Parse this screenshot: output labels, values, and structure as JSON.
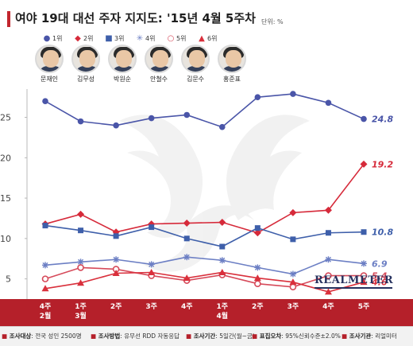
{
  "title": "여야 19대 대선 주자 지지도: '15년 4월 5주차",
  "unit_label": "단위: %",
  "legend": [
    {
      "symbol": "●",
      "label": "1위",
      "color": "#4a55a8"
    },
    {
      "symbol": "◆",
      "label": "2위",
      "color": "#d62a3a"
    },
    {
      "symbol": "■",
      "label": "3위",
      "color": "#3e5faa"
    },
    {
      "symbol": "✳",
      "label": "4위",
      "color": "#6c7fc4"
    },
    {
      "symbol": "○",
      "label": "5위",
      "color": "#d64a5a"
    },
    {
      "symbol": "▲",
      "label": "6위",
      "color": "#d9303c"
    }
  ],
  "candidates": [
    "문재인",
    "김무성",
    "박원순",
    "안철수",
    "김문수",
    "홍준표"
  ],
  "chart_data": {
    "type": "line",
    "categories": [
      "4주\n2월",
      "1주\n3월",
      "2주",
      "3주",
      "4주",
      "1주\n4월",
      "2주",
      "3주",
      "4주",
      "5주"
    ],
    "ylim": [
      2.5,
      28.5
    ],
    "yticks": [
      5,
      10,
      15,
      20,
      25
    ],
    "grid": false,
    "legend_position": "top",
    "series": [
      {
        "name": "1위",
        "color": "#4a55a8",
        "marker": "circle-filled",
        "values": [
          27.0,
          24.5,
          24.0,
          24.9,
          25.3,
          23.8,
          27.5,
          27.9,
          26.8,
          24.8
        ],
        "end_label": "24.8"
      },
      {
        "name": "2위",
        "color": "#d62a3a",
        "marker": "diamond",
        "values": [
          11.8,
          13.0,
          10.8,
          11.8,
          11.9,
          12.0,
          10.7,
          13.2,
          13.5,
          19.2
        ],
        "end_label": "19.2"
      },
      {
        "name": "3위",
        "color": "#3e5faa",
        "marker": "square",
        "values": [
          11.6,
          11.0,
          10.3,
          11.4,
          10.0,
          9.0,
          11.3,
          9.9,
          10.7,
          10.8
        ],
        "end_label": "10.8"
      },
      {
        "name": "4위",
        "color": "#6c7fc4",
        "marker": "asterisk",
        "values": [
          6.7,
          7.1,
          7.4,
          6.8,
          7.7,
          7.3,
          6.4,
          5.6,
          7.4,
          6.9
        ],
        "end_label": "6.9"
      },
      {
        "name": "5위",
        "color": "#d64a5a",
        "marker": "circle-open",
        "values": [
          5.0,
          6.4,
          6.2,
          5.4,
          4.8,
          5.5,
          4.4,
          4.0,
          5.4,
          5.4
        ],
        "end_label": "5.4"
      },
      {
        "name": "6위",
        "color": "#d9303c",
        "marker": "triangle",
        "values": [
          3.8,
          4.5,
          5.7,
          5.8,
          5.1,
          5.8,
          5.1,
          4.6,
          3.4,
          4.6
        ],
        "end_label": "4.6"
      }
    ]
  },
  "brand": "REALMETER",
  "footer": [
    {
      "label": "조사대상",
      "text": "전국 성인 2500명"
    },
    {
      "label": "조사방법",
      "text": "유무선 RDD 자동응답"
    },
    {
      "label": "조사기간",
      "text": "5일간(월~금)"
    },
    {
      "label": "표집오차",
      "text": "95%신뢰수준±2.0%"
    },
    {
      "label": "조사기관",
      "text": "리얼미터"
    }
  ]
}
